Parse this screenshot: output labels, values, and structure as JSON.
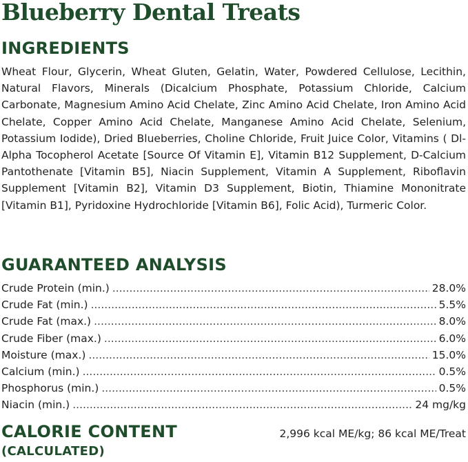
{
  "title": "Blueberry Dental Treats",
  "ingredients": {
    "heading": "INGREDIENTS",
    "text": "Wheat Flour, Glycerin, Wheat Gluten, Gelatin, Water, Powdered Cellulose, Lecithin, Natural Flavors, Minerals (Dicalcium Phosphate, Potassium Chloride, Calcium Carbonate, Magnesium Amino Acid Chelate, Zinc Amino Acid Chelate, Iron Amino Acid Chelate, Copper Amino Acid Chelate, Manganese Amino Acid Chelate, Selenium, Potassium Iodide), Dried Blueberries, Choline Chloride, Fruit Juice Color, Vitamins ( Dl-Alpha Tocopherol Acetate [Source Of Vitamin E], Vitamin B12 Supplement, D-Calcium Pantothenate [Vitamin B5], Niacin Supplement, Vitamin A Supplement, Riboflavin Supplement [Vitamin B2], Vitamin D3 Supplement, Biotin, Thiamine Mononitrate [Vitamin B1], Pyridoxine Hydrochloride [Vitamin B6], Folic Acid), Turmeric Color."
  },
  "analysis": {
    "heading": "GUARANTEED ANALYSIS",
    "rows": [
      {
        "label": "Crude Protein (min.)",
        "value": "28.0%"
      },
      {
        "label": "Crude Fat (min.)",
        "value": "5.5%"
      },
      {
        "label": "Crude Fat (max.)",
        "value": "8.0%"
      },
      {
        "label": "Crude Fiber (max.)",
        "value": "6.0%"
      },
      {
        "label": "Moisture (max.)",
        "value": "15.0%"
      },
      {
        "label": "Calcium (min.)",
        "value": "0.5%"
      },
      {
        "label": "Phosphorus (min.)",
        "value": "0.5%"
      },
      {
        "label": "Niacin (min.)",
        "value": "24 mg/kg"
      }
    ]
  },
  "calorie": {
    "heading": "CALORIE CONTENT",
    "subheading": "(CALCULATED)",
    "value": "2,996 kcal ME/kg; 86 kcal ME/Treat"
  }
}
